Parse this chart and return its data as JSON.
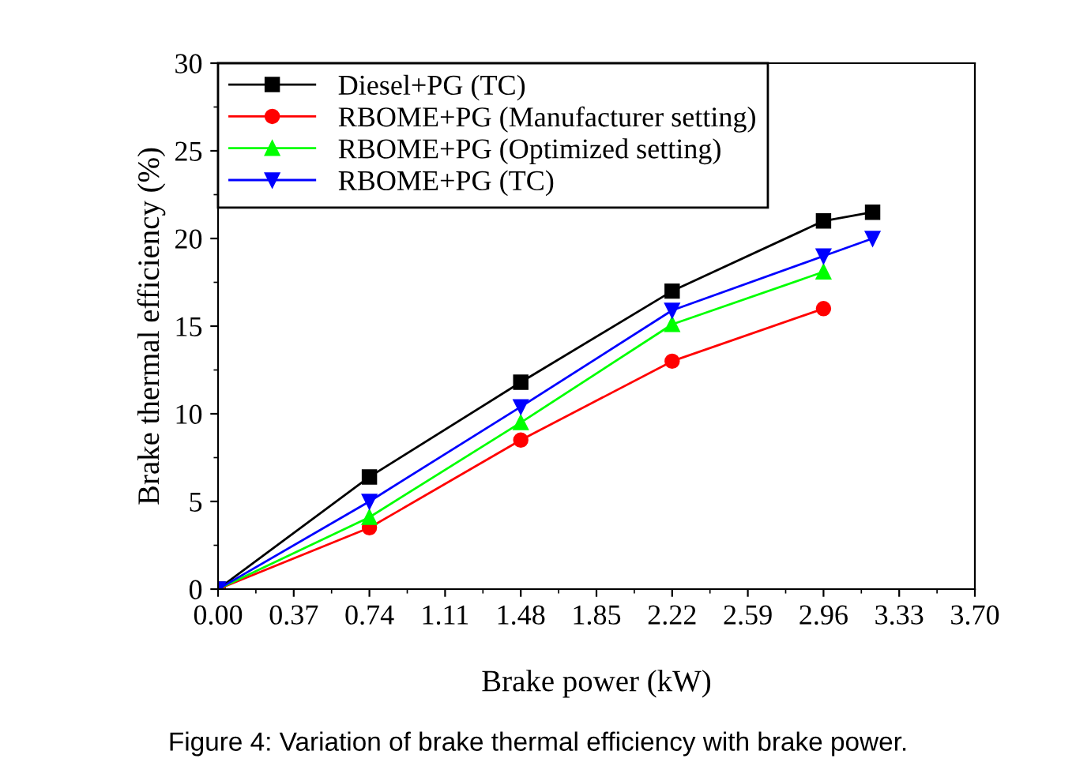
{
  "chart_data": {
    "type": "line",
    "xlabel": "Brake power (kW)",
    "ylabel": "Brake thermal efficiency (%)",
    "xlim": [
      0,
      3.7
    ],
    "xticks": [
      {
        "value": 0,
        "label": "0.00"
      },
      0.37,
      0.74,
      1.11,
      1.48,
      1.85,
      2.22,
      2.59,
      2.96,
      3.33,
      {
        "value": 3.7,
        "label": "3.70"
      }
    ],
    "ylim": [
      0,
      30
    ],
    "yticks": [
      0,
      5,
      10,
      15,
      20,
      25,
      30
    ],
    "grid": false,
    "legend": "top left",
    "annotations": [
      "Figure 4: Variation of brake thermal efficiency with brake power."
    ],
    "series": [
      {
        "name": "Diesel+PG (TC)",
        "color": "#000000",
        "marker": "square",
        "x": [
          0,
          0.74,
          1.48,
          2.22,
          2.96,
          3.2
        ],
        "values": [
          0,
          6.4,
          11.8,
          17.0,
          21.0,
          21.5
        ]
      },
      {
        "name": "RBOME+PG (Manufacturer setting)",
        "color": "#ff0000",
        "marker": "circle",
        "x": [
          0,
          0.74,
          1.48,
          2.22,
          2.96
        ],
        "values": [
          0,
          3.5,
          8.5,
          13.0,
          16.0
        ]
      },
      {
        "name": "RBOME+PG (Optimized setting)",
        "color": "#00ff00",
        "marker": "triangle",
        "x": [
          0,
          0.74,
          1.48,
          2.22,
          2.96
        ],
        "values": [
          0,
          4.1,
          9.5,
          15.1,
          18.1
        ]
      },
      {
        "name": "RBOME+PG (TC)",
        "color": "#0000ff",
        "marker": "triangle_down",
        "x": [
          0,
          0.74,
          1.48,
          2.22,
          2.96,
          3.2
        ],
        "values": [
          0,
          5.0,
          10.4,
          15.9,
          19.0,
          20.0
        ]
      }
    ]
  }
}
